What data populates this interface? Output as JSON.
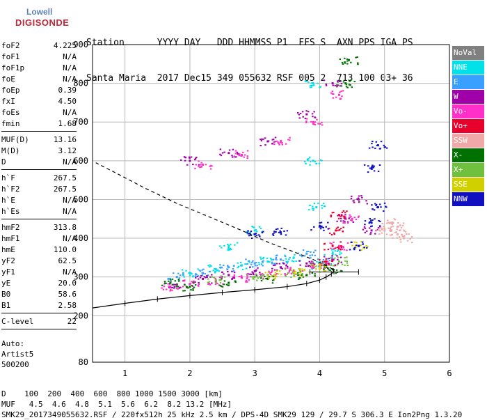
{
  "logo": {
    "line1": "Lowell",
    "line2": "DIGISONDE"
  },
  "header": {
    "line1": "Station      YYYY DAY   DDD HHMMSS P1  FFS S  AXN PPS IGA PS",
    "line2": "Santa Maria  2017 Dec15 349 055632 RSF 005 2  713 100 03+ 36"
  },
  "params": {
    "group1": [
      {
        "k": "foF2",
        "v": "4.225"
      },
      {
        "k": "foF1",
        "v": "N/A"
      },
      {
        "k": "foF1p",
        "v": "N/A"
      },
      {
        "k": "foE",
        "v": "N/A"
      },
      {
        "k": "foEp",
        "v": "0.39"
      },
      {
        "k": "fxI",
        "v": "4.50"
      },
      {
        "k": "foEs",
        "v": "N/A"
      },
      {
        "k": "fmin",
        "v": "1.68"
      }
    ],
    "group2": [
      {
        "k": "MUF(D)",
        "v": "13.16"
      },
      {
        "k": "M(D)",
        "v": "3.12"
      },
      {
        "k": "D",
        "v": "N/A"
      }
    ],
    "group3": [
      {
        "k": "h`F",
        "v": "267.5"
      },
      {
        "k": "h`F2",
        "v": "267.5"
      },
      {
        "k": "h`E",
        "v": "N/A"
      },
      {
        "k": "h`Es",
        "v": "N/A"
      }
    ],
    "group4": [
      {
        "k": "hmF2",
        "v": "313.8"
      },
      {
        "k": "hmF1",
        "v": "N/A"
      },
      {
        "k": "hmE",
        "v": "110.0"
      },
      {
        "k": "yF2",
        "v": "62.5"
      },
      {
        "k": "yF1",
        "v": "N/A"
      },
      {
        "k": "yE",
        "v": "20.0"
      },
      {
        "k": "B0",
        "v": "58.6"
      },
      {
        "k": "B1",
        "v": "2.58"
      }
    ],
    "group5": [
      {
        "k": "C-level",
        "v": "22"
      }
    ]
  },
  "auto": {
    "line1": "Auto:",
    "line2": "Artist5",
    "line3": "500200"
  },
  "legend": [
    {
      "label": "NoVal",
      "color": "#808080"
    },
    {
      "label": "NNE",
      "color": "#00e0e8"
    },
    {
      "label": "E",
      "color": "#3aa0ff"
    },
    {
      "label": "W",
      "color": "#a000a8"
    },
    {
      "label": "Vo-",
      "color": "#ff30c8"
    },
    {
      "label": "Vo+",
      "color": "#e8002c"
    },
    {
      "label": "SSW",
      "color": "#f0a8a8"
    },
    {
      "label": "X-",
      "color": "#007000"
    },
    {
      "label": "X+",
      "color": "#70c040"
    },
    {
      "label": "SSE",
      "color": "#d0d000"
    },
    {
      "label": "NNW",
      "color": "#1010c0"
    }
  ],
  "footer": {
    "row1": "D    100  200  400  600  800 1000 1500 3000 [km]",
    "row2": "MUF   4.5  4.6  4.8  5.1  5.6  6.2  8.2 13.2 [MHz]",
    "row3": "SMK29_2017349055632.RSF / 220fx512h 25 kHz 2.5 km / DPS-4D SMK29 129 / 29.7 S 306.3 E Ion2Png 1.3.20"
  },
  "chart_data": {
    "type": "scatter",
    "title": "",
    "xlabel": "",
    "ylabel": "",
    "xlim": [
      0.5,
      6
    ],
    "ylim": [
      80,
      900
    ],
    "x_ticks": [
      1,
      2,
      3,
      4,
      5,
      6
    ],
    "y_ticks": [
      80,
      200,
      300,
      400,
      500,
      600,
      700,
      800,
      900
    ],
    "grid": true,
    "legend_position": "right",
    "o_trace_profile": {
      "name": "",
      "x": [
        0.5,
        1.0,
        1.5,
        2.0,
        2.5,
        3.0,
        3.5,
        3.8,
        4.0,
        4.1,
        4.18,
        4.22,
        4.2,
        4.1,
        3.9,
        3.6,
        3.2,
        2.8,
        2.3,
        1.8,
        1.3,
        0.9,
        0.55
      ],
      "y": [
        220,
        232,
        243,
        252,
        260,
        267,
        275,
        283,
        292,
        300,
        308,
        314,
        320,
        330,
        345,
        365,
        390,
        420,
        455,
        490,
        530,
        565,
        595
      ]
    },
    "x_trace_error_bar": {
      "x_min": 3.85,
      "x_max": 4.6,
      "y": 313
    },
    "series": [
      {
        "name": "NNE",
        "points": [
          [
            2.0,
            310
          ],
          [
            2.4,
            320
          ],
          [
            2.8,
            330
          ],
          [
            3.2,
            340
          ],
          [
            3.6,
            350
          ],
          [
            4.0,
            330
          ],
          [
            4.2,
            360
          ],
          [
            3.9,
            600
          ],
          [
            3.9,
            800
          ],
          [
            3.95,
            480
          ],
          [
            3.0,
            420
          ],
          [
            2.6,
            380
          ]
        ]
      },
      {
        "name": "E",
        "points": [
          [
            1.8,
            300
          ],
          [
            2.2,
            310
          ],
          [
            2.6,
            325
          ],
          [
            3.0,
            335
          ],
          [
            3.4,
            345
          ],
          [
            3.8,
            360
          ],
          [
            4.1,
            340
          ]
        ]
      },
      {
        "name": "W",
        "points": [
          [
            1.8,
            280
          ],
          [
            2.2,
            295
          ],
          [
            2.6,
            305
          ],
          [
            3.0,
            315
          ],
          [
            3.4,
            325
          ],
          [
            3.8,
            335
          ],
          [
            4.2,
            345
          ],
          [
            4.4,
            450
          ],
          [
            4.6,
            500
          ],
          [
            4.8,
            420
          ],
          [
            2.0,
            600
          ],
          [
            2.6,
            620
          ],
          [
            3.2,
            650
          ],
          [
            3.8,
            720
          ],
          [
            4.2,
            800
          ]
        ]
      },
      {
        "name": "Vo-",
        "points": [
          [
            1.7,
            275
          ],
          [
            2.0,
            282
          ],
          [
            2.4,
            290
          ],
          [
            2.8,
            298
          ],
          [
            3.2,
            305
          ],
          [
            3.6,
            315
          ],
          [
            4.0,
            330
          ],
          [
            4.3,
            380
          ],
          [
            4.5,
            450
          ],
          [
            2.2,
            590
          ],
          [
            2.8,
            615
          ],
          [
            3.4,
            650
          ],
          [
            3.9,
            700
          ],
          [
            4.3,
            770
          ]
        ]
      },
      {
        "name": "Vo+",
        "points": [
          [
            4.1,
            340
          ],
          [
            4.2,
            380
          ],
          [
            4.25,
            420
          ],
          [
            4.3,
            460
          ]
        ]
      },
      {
        "name": "SSW",
        "points": [
          [
            5.0,
            420
          ],
          [
            5.1,
            440
          ],
          [
            5.2,
            410
          ],
          [
            5.3,
            400
          ],
          [
            5.2,
            430
          ]
        ]
      },
      {
        "name": "X-",
        "points": [
          [
            1.7,
            285
          ],
          [
            2.0,
            275
          ],
          [
            2.6,
            285
          ],
          [
            3.2,
            295
          ],
          [
            3.8,
            305
          ],
          [
            4.2,
            320
          ],
          [
            4.45,
            860
          ],
          [
            4.4,
            800
          ]
        ]
      },
      {
        "name": "X+",
        "points": [
          [
            2.4,
            292
          ],
          [
            3.0,
            300
          ],
          [
            3.6,
            310
          ],
          [
            4.3,
            340
          ]
        ]
      },
      {
        "name": "SSE",
        "points": [
          [
            3.3,
            305
          ],
          [
            3.7,
            312
          ],
          [
            4.0,
            322
          ],
          [
            4.6,
            380
          ]
        ]
      },
      {
        "name": "NNW",
        "points": [
          [
            3.0,
            410
          ],
          [
            3.4,
            415
          ],
          [
            4.0,
            430
          ],
          [
            4.6,
            380
          ],
          [
            4.8,
            440
          ],
          [
            4.9,
            480
          ],
          [
            4.9,
            640
          ],
          [
            4.8,
            580
          ]
        ]
      }
    ]
  }
}
